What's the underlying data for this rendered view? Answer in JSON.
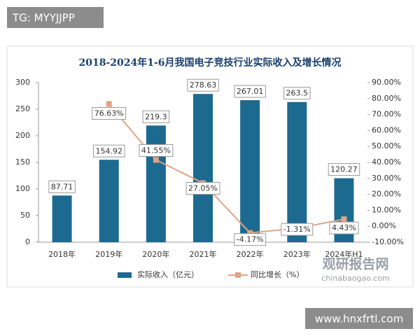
{
  "tag": "TG: MYYJJPP",
  "watermark": {
    "brand": "观研报告网",
    "site": "chinabaogao.com",
    "footer": "www.hnxfrtl.com"
  },
  "chart_data": {
    "type": "bar_line",
    "title": "2018-2024年1-6月我国电子竞技行业实际收入及增长情况",
    "categories": [
      "2018年",
      "2019年",
      "2020年",
      "2021年",
      "2022年",
      "2023年",
      "2024年H1"
    ],
    "series": [
      {
        "name": "实际收入（亿元）",
        "type": "bar",
        "color": "#1d6a91",
        "values": [
          87.71,
          154.92,
          219.3,
          278.63,
          267.01,
          263.5,
          120.27
        ]
      },
      {
        "name": "同比增长（%）",
        "type": "line",
        "axis": "y2",
        "color": "#e0a383",
        "values": [
          null,
          76.63,
          41.55,
          27.05,
          -4.17,
          -1.31,
          4.43
        ],
        "value_labels": [
          null,
          "76.63%",
          "41.55%",
          "27.05%",
          "-4.17%",
          "-1.31%",
          "4.43%"
        ]
      }
    ],
    "ylim": [
      0,
      300
    ],
    "yticks": [
      0,
      50,
      100,
      150,
      200,
      250,
      300
    ],
    "y2lim": [
      -10,
      90
    ],
    "y2ticks": [
      {
        "value": -10,
        "label": "-10.00%"
      },
      {
        "value": 0,
        "label": "0.00%"
      },
      {
        "value": 10,
        "label": "10.00%"
      },
      {
        "value": 20,
        "label": "20.00%"
      },
      {
        "value": 30,
        "label": "30.00%"
      },
      {
        "value": 40,
        "label": "40.00%"
      },
      {
        "value": 50,
        "label": "50.00%"
      },
      {
        "value": 60,
        "label": "60.00%"
      },
      {
        "value": 70,
        "label": "70.00%"
      },
      {
        "value": 80,
        "label": "80.00%"
      },
      {
        "value": 90,
        "label": "90.00%"
      }
    ],
    "grid": false
  }
}
